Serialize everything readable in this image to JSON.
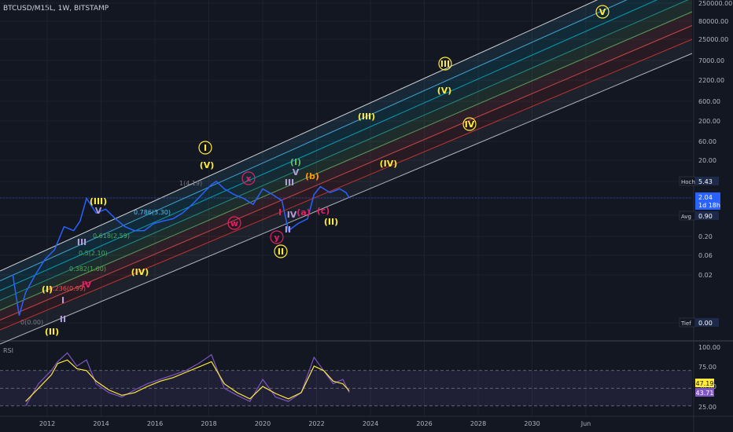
{
  "header": {
    "symbol_line": "BTCUSD/M15L, 1W, BITSTAMP"
  },
  "rsi_panel": {
    "label": "RSI",
    "value_yellow": "47.19",
    "value_purple": "43.71"
  },
  "price_badges": {
    "hoch_label": "Hoch",
    "hoch_value": "5.43",
    "current_value": "2.04",
    "current_time": "1d 18h",
    "avg_label": "Avg",
    "avg_value": "0.90",
    "tief_label": "Tief",
    "tief_value": "0.00"
  },
  "chart_data": [
    {
      "type": "line",
      "title": "BTCUSD/M15L, 1W, BITSTAMP",
      "xlabel": "",
      "ylabel": "",
      "x_ticks": [
        "2012",
        "2014",
        "2016",
        "2018",
        "2020",
        "2022",
        "2024",
        "2026",
        "2028",
        "2030",
        "Jun"
      ],
      "y_ticks": [
        "250000.00",
        "80000.00",
        "25000.00",
        "7000.00",
        "2200.00",
        "600.00",
        "200.00",
        "60.00",
        "20.00",
        "5.43",
        "2.04",
        "0.90",
        "0.20",
        "0.06",
        "0.02",
        "0.00"
      ],
      "y_scale": "log",
      "xlim": [
        2011.2,
        2032.8
      ],
      "series": [
        {
          "x": [
            2011.6,
            2011.8,
            2012.0,
            2012.3,
            2012.6,
            2012.9,
            2013.2,
            2013.5,
            2013.7,
            2013.9,
            2014.2,
            2014.5,
            2014.8,
            2015.1,
            2015.4,
            2015.7,
            2016.0,
            2016.3,
            2016.6,
            2016.9,
            2017.2,
            2017.5,
            2017.8,
            2017.95,
            2018.2,
            2018.5,
            2018.8,
            2019.1,
            2019.4,
            2019.7,
            2020.0,
            2020.2,
            2020.5,
            2020.8,
            2021.0,
            2021.2,
            2021.5,
            2021.8,
            2022.0,
            2022.1
          ],
          "y": [
            0.02,
            0.004,
            0.01,
            0.02,
            0.05,
            0.09,
            0.4,
            0.3,
            0.6,
            2.0,
            1.0,
            1.2,
            0.7,
            0.4,
            0.3,
            0.3,
            0.5,
            0.6,
            0.7,
            1.0,
            1.5,
            2.5,
            4.5,
            5.43,
            3.5,
            2.5,
            2.0,
            1.5,
            3.5,
            2.5,
            1.8,
            0.3,
            0.5,
            0.7,
            2.5,
            4.0,
            2.8,
            3.5,
            2.8,
            2.04
          ]
        }
      ],
      "channel_colors": [
        "#ffffff",
        "#4fc3f7",
        "#00bcd4",
        "#26a69a",
        "#66bb6a",
        "#ef5350",
        "#e53935"
      ],
      "annotations": [
        {
          "text": "(I)",
          "x": 2011.8,
          "y": "high",
          "color": "#ffeb3b"
        },
        {
          "text": "(II)",
          "x": 2011.9,
          "y": "low",
          "color": "#ffeb3b"
        },
        {
          "text": "I",
          "x": 2012.7,
          "color": "#b39ddb"
        },
        {
          "text": "II",
          "x": 2012.6,
          "color": "#b39ddb"
        },
        {
          "text": "III",
          "x": 2013.1,
          "color": "#b39ddb"
        },
        {
          "text": "IV",
          "x": 2012.9,
          "color": "#e91e63"
        },
        {
          "text": "V",
          "x": 2013.9,
          "color": "#b39ddb"
        },
        {
          "text": "(III)",
          "x": 2013.9,
          "color": "#ffeb3b"
        },
        {
          "text": "(IV)",
          "x": 2015.3,
          "color": "#ffeb3b"
        },
        {
          "text": "(V)",
          "x": 2017.9,
          "color": "#ffeb3b"
        },
        {
          "text": "I",
          "x": 2017.9,
          "circled": true,
          "color": "#ffeb3b"
        },
        {
          "text": "II",
          "x": 2020.8,
          "circled": true,
          "color": "#ffeb3b"
        },
        {
          "text": "(I)",
          "x": 2021.3,
          "color": "#66bb6a"
        },
        {
          "text": "(II)",
          "x": 2022.6,
          "color": "#ffeb3b"
        },
        {
          "text": "(III)",
          "x": 2024.1,
          "color": "#ffeb3b"
        },
        {
          "text": "(IV)",
          "x": 2024.9,
          "color": "#ffeb3b"
        },
        {
          "text": "(V)",
          "x": 2027.0,
          "color": "#ffeb3b"
        },
        {
          "text": "III",
          "x": 2027.0,
          "circled": true,
          "color": "#ffeb3b"
        },
        {
          "text": "IV",
          "x": 2028.0,
          "circled": true,
          "color": "#ffeb3b"
        },
        {
          "text": "V",
          "x": 2032.4,
          "circled": true,
          "color": "#ffeb3b"
        },
        {
          "text": "x",
          "x": 2019.5,
          "circled": true,
          "color": "#e91e63"
        },
        {
          "text": "w",
          "x": 2019.0,
          "circled": true,
          "color": "#e91e63"
        },
        {
          "text": "y",
          "x": 2020.7,
          "circled": true,
          "color": "#e91e63"
        },
        {
          "text": "(a)",
          "x": 2021.7,
          "color": "#e91e63"
        },
        {
          "text": "(b)",
          "x": 2021.8,
          "color": "#ff9800"
        },
        {
          "text": "(c)",
          "x": 2022.3,
          "color": "#e91e63"
        },
        {
          "text": "III",
          "x": 2021.0,
          "color": "#b39ddb"
        },
        {
          "text": "IV",
          "x": 2021.1,
          "color": "#b39ddb"
        },
        {
          "text": "V",
          "x": 2021.2,
          "color": "#b39ddb"
        },
        {
          "text": "II",
          "x": 2020.9,
          "color": "#b39ddb"
        },
        {
          "text": "I",
          "x": 2020.6,
          "color": "#e91e63"
        }
      ],
      "fib_labels": [
        "0(0.00)",
        "0.236(0.99)",
        "0.382(1.60)",
        "0.5(2.10)",
        "0.618(2.59)",
        "0.786(3.30)",
        "1(4.19)"
      ]
    },
    {
      "type": "line",
      "title": "RSI",
      "y_ticks": [
        "100.00",
        "75.00",
        "50.00",
        "25.00"
      ],
      "ylim": [
        20,
        100
      ],
      "series": [
        {
          "name": "RSI",
          "x": [
            2012.0,
            2012.4,
            2012.8,
            2013.0,
            2013.3,
            2013.6,
            2013.9,
            2014.2,
            2014.6,
            2015.0,
            2015.4,
            2015.8,
            2016.2,
            2016.6,
            2017.0,
            2017.4,
            2017.8,
            2018.2,
            2018.6,
            2019.0,
            2019.4,
            2019.8,
            2020.2,
            2020.6,
            2021.0,
            2021.3,
            2021.6,
            2021.9,
            2022.1
          ],
          "y": [
            30,
            55,
            70,
            80,
            90,
            75,
            82,
            55,
            45,
            40,
            48,
            55,
            60,
            65,
            70,
            78,
            88,
            50,
            42,
            35,
            60,
            40,
            35,
            45,
            85,
            70,
            55,
            60,
            45
          ]
        },
        {
          "name": "MA",
          "x": [
            2012.0,
            2012.4,
            2012.8,
            2013.0,
            2013.3,
            2013.6,
            2013.9,
            2014.2,
            2014.6,
            2015.0,
            2015.4,
            2015.8,
            2016.2,
            2016.6,
            2017.0,
            2017.4,
            2017.8,
            2018.2,
            2018.6,
            2019.0,
            2019.4,
            2019.8,
            2020.2,
            2020.6,
            2021.0,
            2021.3,
            2021.6,
            2021.9,
            2022.1
          ],
          "y": [
            35,
            50,
            65,
            78,
            82,
            72,
            70,
            58,
            48,
            42,
            45,
            52,
            58,
            62,
            68,
            74,
            80,
            55,
            45,
            38,
            52,
            44,
            38,
            45,
            75,
            70,
            58,
            55,
            47
          ]
        }
      ]
    }
  ]
}
